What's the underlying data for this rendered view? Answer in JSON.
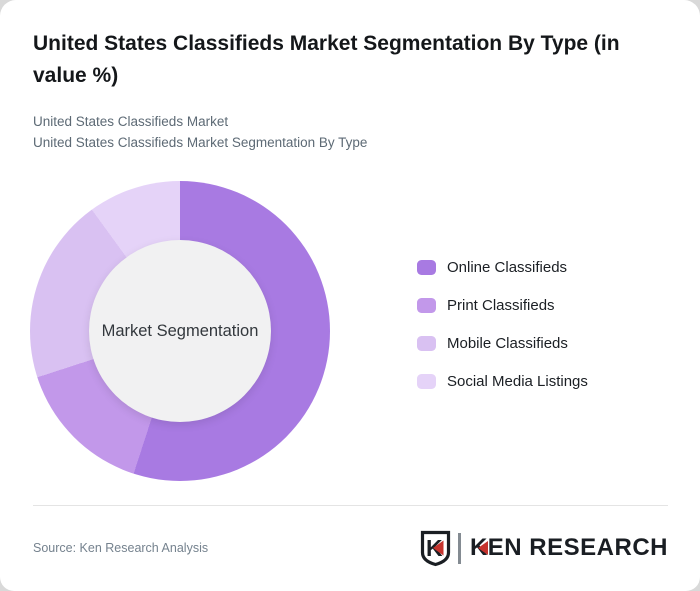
{
  "header": {
    "title": "United States Classifieds Market Segmentation By Type (in value %)",
    "subtitle_line1": "United States Classifieds Market",
    "subtitle_line2": "United States Classifieds Market Segmentation By Type"
  },
  "chart_data": {
    "type": "pie",
    "variant": "donut",
    "title": "United States Classifieds Market Segmentation By Type (in value %)",
    "unit": "%",
    "start_angle_deg": 0,
    "direction": "clockwise",
    "center_label": "Market Segmentation",
    "inner_circle_color": "#f1f1f2",
    "legend_position": "right",
    "segments": [
      {
        "label": "Online Classifieds",
        "value": 55,
        "color": "#a87ae2"
      },
      {
        "label": "Print Classifieds",
        "value": 15,
        "color": "#c298ea"
      },
      {
        "label": "Mobile Classifieds",
        "value": 20,
        "color": "#d9c1f2"
      },
      {
        "label": "Social Media Listings",
        "value": 10,
        "color": "#e5d3f8"
      }
    ]
  },
  "footer": {
    "source": "Source: Ken Research Analysis",
    "logo": {
      "monogram": "K",
      "wordmark": "KEN RESEARCH",
      "accent_color": "#c5332d",
      "ink_color": "#1a1e23"
    }
  }
}
